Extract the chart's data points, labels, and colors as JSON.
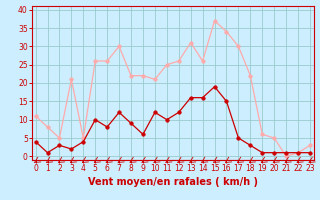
{
  "xlabel": "Vent moyen/en rafales ( km/h )",
  "x": [
    0,
    1,
    2,
    3,
    4,
    5,
    6,
    7,
    8,
    9,
    10,
    11,
    12,
    13,
    14,
    15,
    16,
    17,
    18,
    19,
    20,
    21,
    22,
    23
  ],
  "mean_wind": [
    4,
    1,
    3,
    2,
    4,
    10,
    8,
    12,
    9,
    6,
    12,
    10,
    12,
    16,
    16,
    19,
    15,
    5,
    3,
    1,
    1,
    1,
    1,
    1
  ],
  "gust_wind": [
    11,
    8,
    5,
    21,
    5,
    26,
    26,
    30,
    22,
    22,
    21,
    25,
    26,
    31,
    26,
    37,
    34,
    30,
    22,
    6,
    5,
    0,
    1,
    3
  ],
  "mean_color": "#cc0000",
  "gust_color": "#ffaaaa",
  "bg_color": "#cceeff",
  "grid_color": "#99cccc",
  "axis_color": "#cc0000",
  "label_color": "#cc0000",
  "ylim": [
    -1,
    41
  ],
  "yticks": [
    0,
    5,
    10,
    15,
    20,
    25,
    30,
    35,
    40
  ],
  "xticks": [
    0,
    1,
    2,
    3,
    4,
    5,
    6,
    7,
    8,
    9,
    10,
    11,
    12,
    13,
    14,
    15,
    16,
    17,
    18,
    19,
    20,
    21,
    22,
    23
  ],
  "xlim": [
    -0.3,
    23.3
  ],
  "tick_fontsize": 5.5,
  "xlabel_fontsize": 7,
  "linewidth": 0.9,
  "markersize": 2.5
}
